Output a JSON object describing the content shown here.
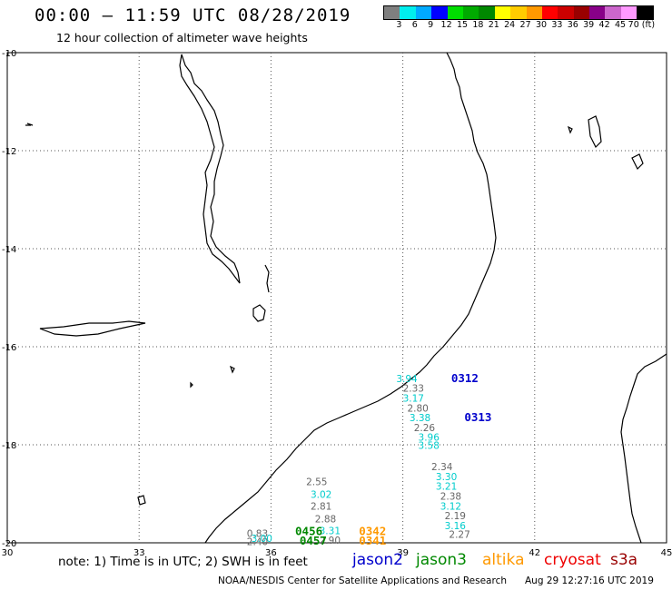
{
  "header": {
    "title": "00:00 – 11:59 UTC 08/28/2019",
    "subtitle": "12 hour collection of altimeter wave heights"
  },
  "colorbar": {
    "colors": [
      "#7f7f7f",
      "#00eeee",
      "#00aaff",
      "#0000ff",
      "#00dd00",
      "#00aa00",
      "#008800",
      "#ffff00",
      "#ffcc00",
      "#ff9900",
      "#ff0000",
      "#cc0000",
      "#990000",
      "#880088",
      "#cc66cc",
      "#ff99ff",
      "#000000"
    ],
    "labels": [
      "3",
      "6",
      "9",
      "12",
      "15",
      "18",
      "21",
      "24",
      "27",
      "30",
      "33",
      "36",
      "39",
      "42",
      "45",
      "70 (ft)"
    ]
  },
  "axes": {
    "x_labels": [
      "30",
      "33",
      "36",
      "39",
      "42",
      "45"
    ],
    "y_labels": [
      "-10",
      "-12",
      "-14",
      "-16",
      "-18",
      "-20"
    ],
    "lon_range": [
      30,
      45
    ],
    "lat_range": [
      -20,
      -10
    ]
  },
  "observations": [
    {
      "lon": 38.85,
      "lat": -16.72,
      "text": "3.94",
      "color": "#00cccc"
    },
    {
      "lon": 39.0,
      "lat": -16.92,
      "text": "2.33",
      "color": "#666666"
    },
    {
      "lon": 39.0,
      "lat": -17.12,
      "text": "3.17",
      "color": "#00cccc"
    },
    {
      "lon": 39.1,
      "lat": -17.32,
      "text": "2.80",
      "color": "#666666"
    },
    {
      "lon": 39.15,
      "lat": -17.52,
      "text": "3.38",
      "color": "#00cccc"
    },
    {
      "lon": 39.25,
      "lat": -17.72,
      "text": "2.26",
      "color": "#666666"
    },
    {
      "lon": 39.35,
      "lat": -17.92,
      "text": "3.96",
      "color": "#00cccc"
    },
    {
      "lon": 39.35,
      "lat": -18.08,
      "text": "3.58",
      "color": "#00cccc"
    },
    {
      "lon": 39.65,
      "lat": -18.52,
      "text": "2.34",
      "color": "#666666"
    },
    {
      "lon": 39.75,
      "lat": -18.72,
      "text": "3.30",
      "color": "#00cccc"
    },
    {
      "lon": 39.75,
      "lat": -18.92,
      "text": "3.21",
      "color": "#00cccc"
    },
    {
      "lon": 39.85,
      "lat": -19.12,
      "text": "2.38",
      "color": "#666666"
    },
    {
      "lon": 39.85,
      "lat": -19.32,
      "text": "3.12",
      "color": "#00cccc"
    },
    {
      "lon": 39.95,
      "lat": -19.52,
      "text": "2.19",
      "color": "#666666"
    },
    {
      "lon": 39.95,
      "lat": -19.72,
      "text": "3.16",
      "color": "#00cccc"
    },
    {
      "lon": 40.05,
      "lat": -19.9,
      "text": "2.27",
      "color": "#666666"
    },
    {
      "lon": 36.8,
      "lat": -18.82,
      "text": "2.55",
      "color": "#666666"
    },
    {
      "lon": 36.9,
      "lat": -19.08,
      "text": "3.02",
      "color": "#00cccc"
    },
    {
      "lon": 36.9,
      "lat": -19.32,
      "text": "2.81",
      "color": "#666666"
    },
    {
      "lon": 37.0,
      "lat": -19.58,
      "text": "2.88",
      "color": "#666666"
    },
    {
      "lon": 37.1,
      "lat": -19.82,
      "text": "3.31",
      "color": "#00cccc"
    },
    {
      "lon": 37.1,
      "lat": -20.02,
      "text": "2.90",
      "color": "#666666"
    },
    {
      "lon": 35.45,
      "lat": -19.88,
      "text": "0.83",
      "color": "#666666"
    },
    {
      "lon": 35.45,
      "lat": -20.05,
      "text": "2.40",
      "color": "#666666"
    },
    {
      "lon": 35.55,
      "lat": -19.98,
      "text": "3.00",
      "color": "#00cccc"
    }
  ],
  "time_labels": [
    {
      "lon": 40.1,
      "lat": -16.72,
      "text": "0312",
      "color": "#0000cc"
    },
    {
      "lon": 40.4,
      "lat": -17.52,
      "text": "0313",
      "color": "#0000cc"
    },
    {
      "lon": 36.55,
      "lat": -19.84,
      "text": "0456",
      "color": "#008800"
    },
    {
      "lon": 36.65,
      "lat": -20.04,
      "text": "0457",
      "color": "#008800"
    },
    {
      "lon": 38.0,
      "lat": -19.84,
      "text": "0342",
      "color": "#ff9900"
    },
    {
      "lon": 38.0,
      "lat": -20.04,
      "text": "0341",
      "color": "#ff9900"
    }
  ],
  "note": "note:  1) Time is in UTC;  2) SWH is in feet",
  "satellites": [
    {
      "name": "jason2",
      "color": "#0000cc"
    },
    {
      "name": "jason3",
      "color": "#008800"
    },
    {
      "name": "altika",
      "color": "#ff9900"
    },
    {
      "name": "cryosat",
      "color": "#ee0000"
    },
    {
      "name": "s3a",
      "color": "#990000"
    }
  ],
  "footer": {
    "credit": "NOAA/NESDIS Center for Satellite Applications and Research",
    "timestamp": "Aug 29 12:27:16 UTC 2019"
  }
}
